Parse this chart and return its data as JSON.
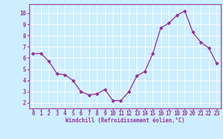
{
  "x_values": [
    0,
    1,
    2,
    3,
    4,
    5,
    6,
    7,
    8,
    9,
    10,
    11,
    12,
    13,
    14,
    15,
    16,
    17,
    18,
    19,
    20,
    21,
    22,
    23
  ],
  "y_values": [
    6.4,
    6.4,
    5.7,
    4.6,
    4.5,
    4.0,
    3.0,
    2.7,
    2.8,
    3.2,
    2.2,
    2.2,
    3.0,
    4.4,
    4.8,
    6.4,
    8.7,
    9.1,
    9.8,
    10.2,
    8.3,
    7.4,
    6.9,
    5.5
  ],
  "line_color": "#993399",
  "marker": "D",
  "marker_size": 2.0,
  "line_width": 1.0,
  "bg_color": "#cceeff",
  "grid_color": "#ffffff",
  "xlabel": "Windchill (Refroidissement éolien,°C)",
  "xlabel_color": "#993399",
  "tick_color": "#993399",
  "xlim": [
    -0.5,
    23.5
  ],
  "ylim": [
    1.5,
    10.8
  ],
  "yticks": [
    2,
    3,
    4,
    5,
    6,
    7,
    8,
    9,
    10
  ],
  "xticks": [
    0,
    1,
    2,
    3,
    4,
    5,
    6,
    7,
    8,
    9,
    10,
    11,
    12,
    13,
    14,
    15,
    16,
    17,
    18,
    19,
    20,
    21,
    22,
    23
  ],
  "font_size_xlabel": 5.5,
  "font_size_ticks": 5.5
}
